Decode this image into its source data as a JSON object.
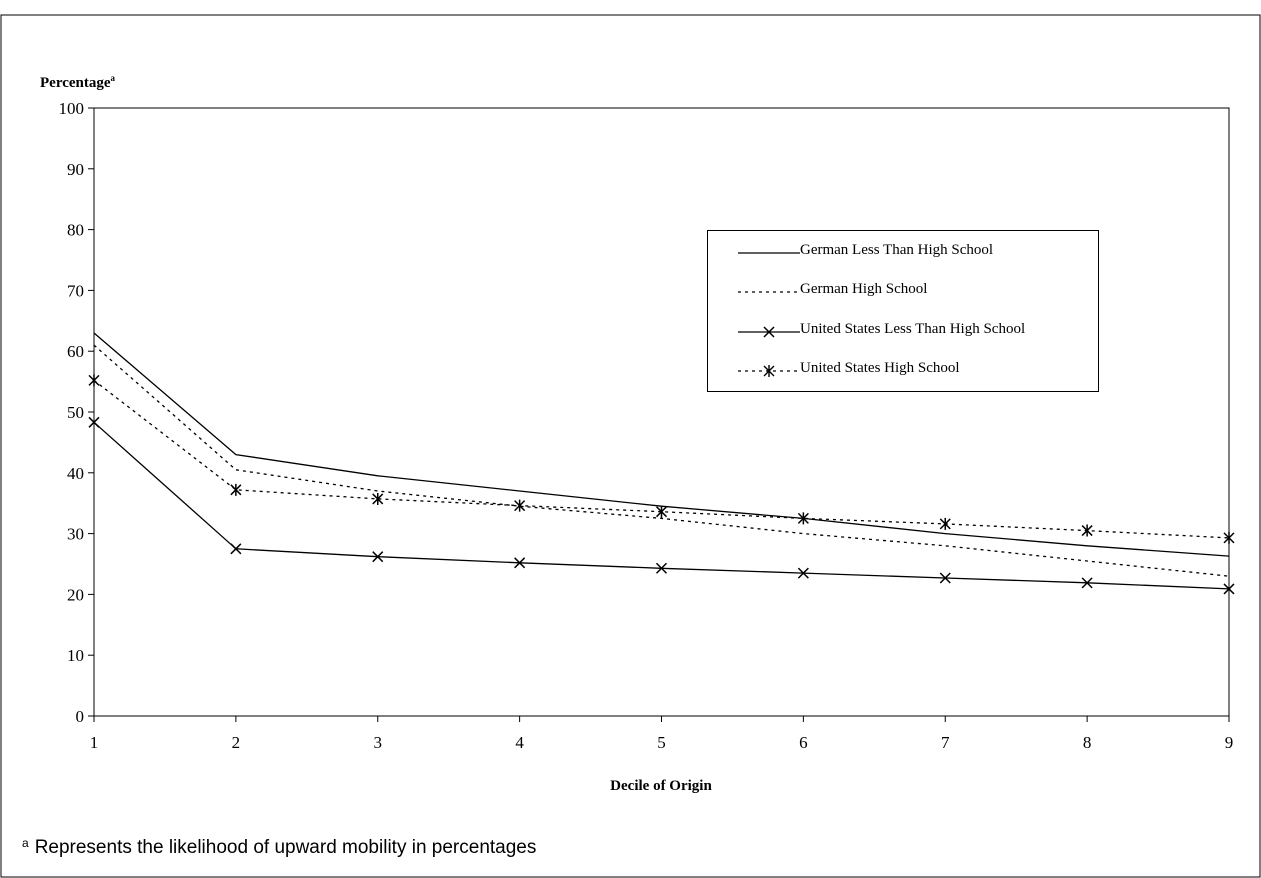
{
  "chart_data": {
    "type": "line",
    "xlabel": "Decile of Origin",
    "ylabel": "Percentage",
    "ylabel_superscript": "a",
    "ylim": [
      0,
      100
    ],
    "yticks": [
      0,
      10,
      20,
      30,
      40,
      50,
      60,
      70,
      80,
      90,
      100
    ],
    "x": [
      1,
      2,
      3,
      4,
      5,
      6,
      7,
      8,
      9
    ],
    "grid": false,
    "legend_position": "upper-right",
    "series": [
      {
        "name": "German Less Than High School",
        "style": "solid",
        "marker": "none",
        "values": [
          63,
          43,
          39.5,
          37,
          34.5,
          32.5,
          30,
          28,
          26.3
        ]
      },
      {
        "name": "German High School",
        "style": "dotted",
        "marker": "none",
        "values": [
          61,
          40.5,
          37,
          34.5,
          32.5,
          30,
          28,
          25.5,
          23
        ]
      },
      {
        "name": "United States Less Than High School",
        "style": "solid",
        "marker": "x",
        "values": [
          48.3,
          27.5,
          26.2,
          25.2,
          24.3,
          23.5,
          22.7,
          21.9,
          20.9
        ]
      },
      {
        "name": "United States High School",
        "style": "dotted",
        "marker": "asterisk",
        "values": [
          55.2,
          37.2,
          35.7,
          34.6,
          33.6,
          32.5,
          31.6,
          30.5,
          29.3
        ]
      }
    ]
  },
  "footnote": {
    "marker": "a",
    "text": "Represents the likelihood of upward mobility in percentages"
  },
  "colors": {
    "line": "#000000",
    "background": "#ffffff"
  }
}
